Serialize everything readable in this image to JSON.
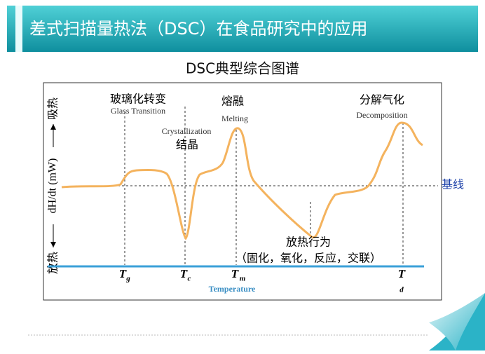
{
  "header": {
    "title": "差式扫描量热法（DSC）在食品研究中的应用"
  },
  "diagram": {
    "title": "DSC典型综合图谱",
    "y_axis": {
      "low": "放热",
      "unit": "dH/dt (mW)",
      "high": "吸热"
    },
    "annotations": {
      "glass_cn": "玻璃化转变",
      "glass_en": "Glass Transition",
      "cryst_en": "Crystallization",
      "cryst_cn": "结晶",
      "melt_cn": "熔融",
      "melt_en": "Melting",
      "decomp_cn": "分解气化",
      "decomp_en": "Decomposition",
      "exo_cn": "放热行为",
      "exo_detail": "（固化，氧化，反应，交联）",
      "baseline": "基线"
    },
    "markers": [
      {
        "symbol": "T",
        "sub": "g"
      },
      {
        "symbol": "T",
        "sub": "c"
      },
      {
        "symbol": "T",
        "sub": "m"
      },
      {
        "symbol": "T",
        "sub": "d"
      }
    ],
    "x_label": "Temperature"
  }
}
